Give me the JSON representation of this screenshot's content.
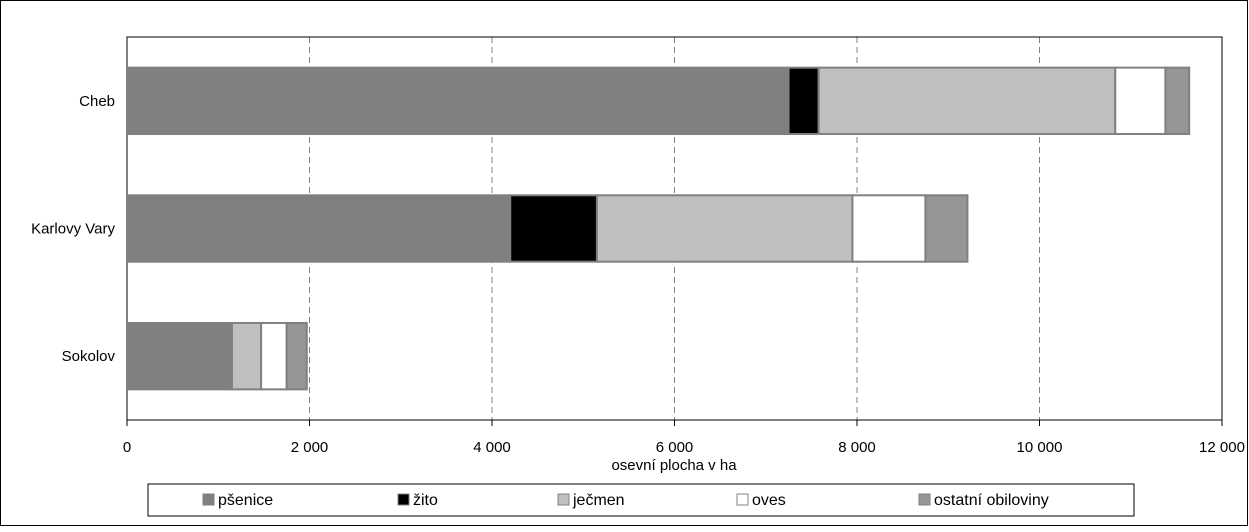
{
  "chart_data": {
    "type": "bar",
    "orientation": "horizontal",
    "stacked": true,
    "categories": [
      "Cheb",
      "Karlovy Vary",
      "Sokolov"
    ],
    "series": [
      {
        "name": "pšenice",
        "color": "#808080",
        "values": [
          7250,
          4200,
          1150
        ]
      },
      {
        "name": "žito",
        "color": "#000000",
        "values": [
          330,
          950,
          0
        ]
      },
      {
        "name": "ječmen",
        "color": "#c0c0c0",
        "values": [
          3250,
          2800,
          320
        ]
      },
      {
        "name": "oves",
        "color": "#ffffff",
        "values": [
          550,
          800,
          280
        ]
      },
      {
        "name": "ostatní obiloviny",
        "color": "#969696",
        "values": [
          260,
          460,
          220
        ]
      }
    ],
    "xlabel": "osevní plocha v ha",
    "ylabel": "",
    "xlim": [
      0,
      12000
    ],
    "xticks": [
      0,
      2000,
      4000,
      6000,
      8000,
      10000,
      12000
    ],
    "xtick_labels": [
      "0",
      "2 000",
      "4 000",
      "6 000",
      "8 000",
      "10 000",
      "12 000"
    ],
    "grid": "vertical-dashed",
    "legend_position": "bottom"
  }
}
